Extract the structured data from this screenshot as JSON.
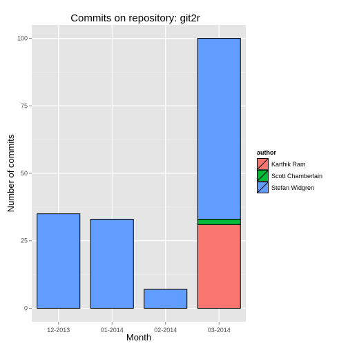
{
  "chart_data": {
    "type": "bar",
    "stacked": true,
    "title": "Commits on repository: git2r",
    "xlabel": "Month",
    "ylabel": "Number of commits",
    "categories": [
      "12-2013",
      "01-2014",
      "02-2014",
      "03-2014"
    ],
    "yticks": [
      "0",
      "25",
      "50",
      "75",
      "100"
    ],
    "ylim": [
      -5,
      105
    ],
    "grid": true,
    "legend": {
      "title": "author",
      "position": "right"
    },
    "series": [
      {
        "name": "Karthik Ram",
        "color": "#F8766D",
        "values": [
          0,
          0,
          0,
          31
        ]
      },
      {
        "name": "Scott Chamberlain",
        "color": "#00BA38",
        "values": [
          0,
          0,
          0,
          2
        ]
      },
      {
        "name": "Stefan Widgren",
        "color": "#619CFF",
        "values": [
          35,
          33,
          7,
          67
        ]
      }
    ]
  }
}
